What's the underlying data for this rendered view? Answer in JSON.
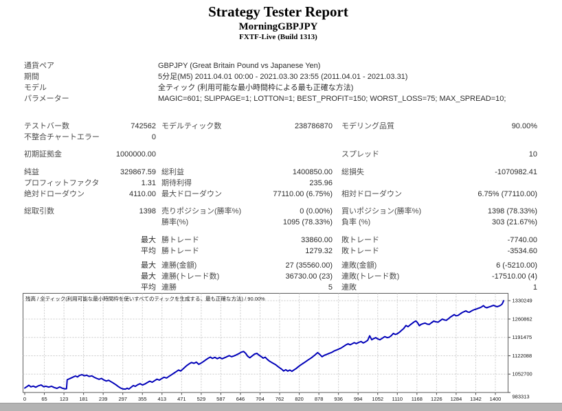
{
  "header": {
    "title": "Strategy Tester Report",
    "subtitle": "MorningGBPJPY",
    "build": "FXTF-Live (Build 1313)"
  },
  "info_rows": [
    {
      "label": "通貨ペア",
      "value": "GBPJPY (Great Britain Pound vs Japanese Yen)"
    },
    {
      "label": "期間",
      "value": "5分足(M5) 2011.04.01 00:00 - 2021.03.30 23:55 (2011.04.01 - 2021.03.31)"
    },
    {
      "label": "モデル",
      "value": "全ティック (利用可能な最小時間枠による最も正確な方法)"
    },
    {
      "label": "パラメーター",
      "value": "MAGIC=601; SLIPPAGE=1; LOTTON=1; BEST_PROFIT=150; WORST_LOSS=75; MAX_SPREAD=10;"
    }
  ],
  "stat_rows": [
    {
      "c1l": "テストバー数",
      "c1v": "742562",
      "c2l": "モデルティック数",
      "c2v": "238786870",
      "c3l": "モデリング品質",
      "c3v": "90.00%"
    },
    {
      "c1l": "不整合チャートエラー",
      "c1v": "0",
      "c2l": "",
      "c2v": "",
      "c3l": "",
      "c3v": ""
    },
    {
      "c1l": "初期証拠金",
      "c1v": "1000000.00",
      "c2l": "",
      "c2v": "",
      "c3l": "スプレッド",
      "c3v": "10"
    },
    {
      "c1l": "純益",
      "c1v": "329867.59",
      "c2l": "総利益",
      "c2v": "1400850.00",
      "c3l": "総損失",
      "c3v": "-1070982.41"
    },
    {
      "c1l": "プロフィットファクタ",
      "c1v": "1.31",
      "c2l": "期待利得",
      "c2v": "235.96",
      "c3l": "",
      "c3v": ""
    },
    {
      "c1l": "絶対ドローダウン",
      "c1v": "4110.00",
      "c2l": "最大ドローダウン",
      "c2v": "77110.00 (6.75%)",
      "c3l": "相対ドローダウン",
      "c3v": "6.75% (77110.00)"
    },
    {
      "c1l": "総取引数",
      "c1v": "1398",
      "c2l": "売りポジション(勝率%)",
      "c2v": "0 (0.00%)",
      "c3l": "買いポジション(勝率%)",
      "c3v": "1398 (78.33%)"
    },
    {
      "c1l": "",
      "c1v": "",
      "c2l": "勝率(%)",
      "c2v": "1095 (78.33%)",
      "c3l": "負率 (%)",
      "c3v": "303 (21.67%)"
    },
    {
      "c1l": "",
      "c1v": "最大",
      "c2l": "勝トレード",
      "c2v": "33860.00",
      "c3l": "敗トレード",
      "c3v": "-7740.00"
    },
    {
      "c1l": "",
      "c1v": "平均",
      "c2l": "勝トレード",
      "c2v": "1279.32",
      "c3l": "敗トレード",
      "c3v": "-3534.60"
    },
    {
      "c1l": "",
      "c1v": "最大",
      "c2l": "連勝(金額)",
      "c2v": "27 (35560.00)",
      "c3l": "連敗(金額)",
      "c3v": "6 (-5210.00)"
    },
    {
      "c1l": "",
      "c1v": "最大",
      "c2l": "連勝(トレード数)",
      "c2v": "36730.00 (23)",
      "c3l": "連敗(トレード数)",
      "c3v": "-17510.00 (4)"
    },
    {
      "c1l": "",
      "c1v": "平均",
      "c2l": "連勝",
      "c2v": "5",
      "c3l": "連敗",
      "c3v": "1"
    }
  ],
  "chart_data": {
    "type": "line",
    "title": "残高 / 全ティック(利用可能な最小時間枠を使いすべてのティックを生成する、最も正確な方法) / 90.00%",
    "series_name": "残高",
    "xlabel": "",
    "ylabel": "",
    "x_ticks": [
      0,
      65,
      123,
      181,
      239,
      297,
      355,
      413,
      471,
      529,
      587,
      646,
      704,
      762,
      820,
      878,
      936,
      994,
      1052,
      1110,
      1168,
      1226,
      1284,
      1342,
      1400
    ],
    "y_ticks": [
      983313,
      1052700,
      1122088,
      1191475,
      1260862,
      1330249
    ],
    "xlim": [
      0,
      1400
    ],
    "ylim": [
      983313,
      1358000
    ],
    "grid": "dashed",
    "line_color": "#0000b8",
    "points": [
      [
        0,
        1000000
      ],
      [
        6,
        1005000
      ],
      [
        12,
        1010500
      ],
      [
        18,
        1004500
      ],
      [
        25,
        1007500
      ],
      [
        32,
        1003000
      ],
      [
        40,
        1008500
      ],
      [
        48,
        1011500
      ],
      [
        55,
        1005000
      ],
      [
        62,
        1007000
      ],
      [
        70,
        1003500
      ],
      [
        78,
        1007000
      ],
      [
        86,
        1002000
      ],
      [
        94,
        999000
      ],
      [
        102,
        1004000
      ],
      [
        110,
        999500
      ],
      [
        118,
        996800
      ],
      [
        122,
        997500
      ],
      [
        124,
        1031500
      ],
      [
        132,
        1036000
      ],
      [
        140,
        1041000
      ],
      [
        148,
        1045500
      ],
      [
        154,
        1042000
      ],
      [
        160,
        1048000
      ],
      [
        167,
        1050500
      ],
      [
        174,
        1046500
      ],
      [
        181,
        1048500
      ],
      [
        188,
        1044000
      ],
      [
        196,
        1046000
      ],
      [
        203,
        1040500
      ],
      [
        210,
        1036500
      ],
      [
        217,
        1033000
      ],
      [
        224,
        1036500
      ],
      [
        231,
        1030500
      ],
      [
        238,
        1026500
      ],
      [
        245,
        1029500
      ],
      [
        252,
        1024000
      ],
      [
        259,
        1018500
      ],
      [
        266,
        1012500
      ],
      [
        273,
        1006000
      ],
      [
        280,
        1000000
      ],
      [
        287,
        996500
      ],
      [
        294,
        995890
      ],
      [
        299,
        999500
      ],
      [
        304,
        996300
      ],
      [
        310,
        1002500
      ],
      [
        317,
        1009500
      ],
      [
        323,
        1006500
      ],
      [
        330,
        1012500
      ],
      [
        337,
        1016500
      ],
      [
        344,
        1011500
      ],
      [
        351,
        1015500
      ],
      [
        358,
        1021000
      ],
      [
        365,
        1026000
      ],
      [
        372,
        1022000
      ],
      [
        379,
        1028000
      ],
      [
        386,
        1033500
      ],
      [
        393,
        1030000
      ],
      [
        400,
        1036000
      ],
      [
        407,
        1041000
      ],
      [
        414,
        1038000
      ],
      [
        421,
        1044000
      ],
      [
        428,
        1050000
      ],
      [
        435,
        1056000
      ],
      [
        442,
        1062000
      ],
      [
        449,
        1068000
      ],
      [
        455,
        1064500
      ],
      [
        461,
        1071000
      ],
      [
        467,
        1078000
      ],
      [
        473,
        1085000
      ],
      [
        480,
        1091500
      ],
      [
        487,
        1096500
      ],
      [
        494,
        1093500
      ],
      [
        501,
        1098000
      ],
      [
        508,
        1089500
      ],
      [
        515,
        1094500
      ],
      [
        522,
        1100500
      ],
      [
        529,
        1107000
      ],
      [
        536,
        1113000
      ],
      [
        542,
        1117000
      ],
      [
        548,
        1112000
      ],
      [
        555,
        1116000
      ],
      [
        562,
        1111000
      ],
      [
        569,
        1115500
      ],
      [
        576,
        1110500
      ],
      [
        583,
        1114500
      ],
      [
        590,
        1118500
      ],
      [
        597,
        1122500
      ],
      [
        604,
        1118500
      ],
      [
        611,
        1121500
      ],
      [
        618,
        1125500
      ],
      [
        625,
        1130000
      ],
      [
        632,
        1135500
      ],
      [
        639,
        1138500
      ],
      [
        645,
        1131000
      ],
      [
        651,
        1120000
      ],
      [
        657,
        1114500
      ],
      [
        664,
        1121500
      ],
      [
        671,
        1128500
      ],
      [
        678,
        1131000
      ],
      [
        684,
        1124500
      ],
      [
        690,
        1119500
      ],
      [
        696,
        1113000
      ],
      [
        702,
        1116500
      ],
      [
        708,
        1108500
      ],
      [
        714,
        1102000
      ],
      [
        720,
        1097500
      ],
      [
        726,
        1093000
      ],
      [
        732,
        1088500
      ],
      [
        738,
        1082500
      ],
      [
        744,
        1077000
      ],
      [
        750,
        1071500
      ],
      [
        756,
        1064500
      ],
      [
        762,
        1069500
      ],
      [
        768,
        1064000
      ],
      [
        774,
        1068000
      ],
      [
        780,
        1063200
      ],
      [
        786,
        1068500
      ],
      [
        792,
        1073500
      ],
      [
        799,
        1081000
      ],
      [
        806,
        1087500
      ],
      [
        813,
        1093500
      ],
      [
        820,
        1099500
      ],
      [
        827,
        1106000
      ],
      [
        834,
        1112000
      ],
      [
        841,
        1118500
      ],
      [
        848,
        1126000
      ],
      [
        855,
        1134000
      ],
      [
        861,
        1127500
      ],
      [
        868,
        1118500
      ],
      [
        875,
        1124000
      ],
      [
        882,
        1127500
      ],
      [
        889,
        1131500
      ],
      [
        896,
        1134500
      ],
      [
        903,
        1140000
      ],
      [
        910,
        1143500
      ],
      [
        917,
        1147500
      ],
      [
        924,
        1151500
      ],
      [
        931,
        1157500
      ],
      [
        938,
        1163500
      ],
      [
        944,
        1167500
      ],
      [
        950,
        1163500
      ],
      [
        956,
        1167500
      ],
      [
        962,
        1171500
      ],
      [
        968,
        1168000
      ],
      [
        975,
        1172500
      ],
      [
        982,
        1176000
      ],
      [
        988,
        1170500
      ],
      [
        995,
        1175000
      ],
      [
        1001,
        1180000
      ],
      [
        1007,
        1197500
      ],
      [
        1013,
        1182500
      ],
      [
        1019,
        1187000
      ],
      [
        1025,
        1190500
      ],
      [
        1031,
        1185500
      ],
      [
        1037,
        1182500
      ],
      [
        1044,
        1188500
      ],
      [
        1051,
        1194500
      ],
      [
        1058,
        1190500
      ],
      [
        1064,
        1192000
      ],
      [
        1070,
        1198000
      ],
      [
        1076,
        1206500
      ],
      [
        1082,
        1202500
      ],
      [
        1088,
        1205500
      ],
      [
        1094,
        1211000
      ],
      [
        1100,
        1218000
      ],
      [
        1106,
        1224500
      ],
      [
        1113,
        1236500
      ],
      [
        1119,
        1232000
      ],
      [
        1125,
        1238500
      ],
      [
        1131,
        1244500
      ],
      [
        1137,
        1250500
      ],
      [
        1142,
        1253500
      ],
      [
        1147,
        1246500
      ],
      [
        1152,
        1235500
      ],
      [
        1157,
        1240500
      ],
      [
        1163,
        1243500
      ],
      [
        1169,
        1245500
      ],
      [
        1175,
        1241500
      ],
      [
        1181,
        1240500
      ],
      [
        1187,
        1246500
      ],
      [
        1194,
        1253000
      ],
      [
        1200,
        1250500
      ],
      [
        1207,
        1249000
      ],
      [
        1213,
        1255000
      ],
      [
        1219,
        1260500
      ],
      [
        1225,
        1257500
      ],
      [
        1231,
        1256000
      ],
      [
        1237,
        1262000
      ],
      [
        1243,
        1268500
      ],
      [
        1249,
        1273500
      ],
      [
        1254,
        1277500
      ],
      [
        1259,
        1273000
      ],
      [
        1265,
        1274500
      ],
      [
        1271,
        1280000
      ],
      [
        1277,
        1285500
      ],
      [
        1283,
        1289000
      ],
      [
        1288,
        1291500
      ],
      [
        1293,
        1287500
      ],
      [
        1298,
        1286500
      ],
      [
        1304,
        1291000
      ],
      [
        1309,
        1294500
      ],
      [
        1314,
        1297000
      ],
      [
        1319,
        1299000
      ],
      [
        1324,
        1301500
      ],
      [
        1329,
        1303500
      ],
      [
        1334,
        1307000
      ],
      [
        1339,
        1311500
      ],
      [
        1344,
        1305500
      ],
      [
        1349,
        1303500
      ],
      [
        1354,
        1306000
      ],
      [
        1359,
        1308000
      ],
      [
        1364,
        1310500
      ],
      [
        1369,
        1312500
      ],
      [
        1374,
        1309500
      ],
      [
        1379,
        1307500
      ],
      [
        1384,
        1309500
      ],
      [
        1389,
        1312500
      ],
      [
        1393,
        1316500
      ],
      [
        1396,
        1323500
      ],
      [
        1398,
        1329868
      ]
    ]
  }
}
